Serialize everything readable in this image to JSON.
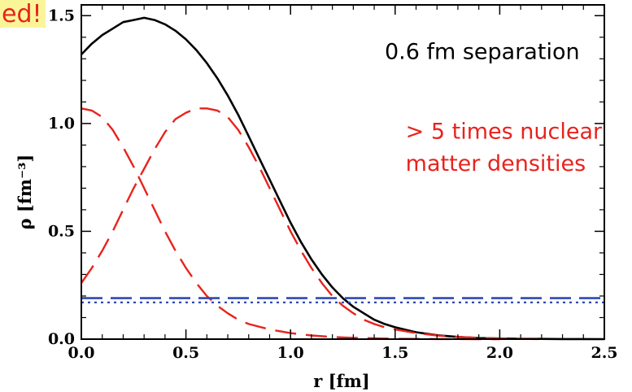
{
  "corner_label": "ed!",
  "chart_data": {
    "type": "line",
    "xlabel": "r [fm]",
    "ylabel": "ρ [fm⁻³]",
    "xlim": [
      0,
      2.5
    ],
    "ylim": [
      0,
      1.55
    ],
    "x_ticks": [
      0.0,
      0.5,
      1.0,
      1.5,
      2.0,
      2.5
    ],
    "x_tick_labels": [
      "0.0",
      "0.5",
      "1.0",
      "1.5",
      "2.0",
      "2.5"
    ],
    "y_ticks": [
      0.0,
      0.5,
      1.0,
      1.5
    ],
    "y_tick_labels": [
      "0.0",
      "0.5",
      "1.0",
      "1.5"
    ],
    "grid": false,
    "annotations": [
      {
        "text": "0.6 fm separation",
        "color": "#000000",
        "x": 1.45,
        "y": 1.3
      },
      {
        "text": "> 5 times nuclear",
        "color": "#e8231d",
        "x": 1.55,
        "y": 0.93
      },
      {
        "text": "matter densities",
        "color": "#e8231d",
        "x": 1.55,
        "y": 0.78
      }
    ],
    "series": [
      {
        "style": "solid",
        "color": "#000000",
        "x": [
          0,
          0.05,
          0.1,
          0.15,
          0.2,
          0.25,
          0.3,
          0.35,
          0.4,
          0.45,
          0.5,
          0.55,
          0.6,
          0.65,
          0.7,
          0.75,
          0.8,
          0.85,
          0.9,
          0.95,
          1.0,
          1.05,
          1.1,
          1.15,
          1.2,
          1.25,
          1.3,
          1.35,
          1.4,
          1.45,
          1.5,
          1.6,
          1.7,
          1.8,
          1.9,
          2.0,
          2.1,
          2.2,
          2.3,
          2.4,
          2.5
        ],
        "y": [
          1.32,
          1.37,
          1.41,
          1.44,
          1.47,
          1.48,
          1.49,
          1.48,
          1.46,
          1.43,
          1.39,
          1.34,
          1.28,
          1.21,
          1.13,
          1.04,
          0.94,
          0.84,
          0.74,
          0.64,
          0.54,
          0.45,
          0.37,
          0.3,
          0.24,
          0.19,
          0.15,
          0.12,
          0.09,
          0.07,
          0.055,
          0.032,
          0.018,
          0.01,
          0.005,
          0.003,
          0.0015,
          0.001,
          0.0005,
          0.0002,
          0.0001
        ]
      },
      {
        "style": "dashed",
        "color": "#e8231d",
        "x": [
          0,
          0.05,
          0.1,
          0.15,
          0.2,
          0.25,
          0.3,
          0.35,
          0.4,
          0.45,
          0.5,
          0.55,
          0.6,
          0.65,
          0.7,
          0.75,
          0.8,
          0.9,
          1.0,
          1.1,
          1.2,
          1.3,
          1.4,
          1.5,
          1.6,
          1.7,
          1.8,
          1.9,
          2.0
        ],
        "y": [
          1.07,
          1.06,
          1.03,
          0.97,
          0.89,
          0.8,
          0.7,
          0.6,
          0.5,
          0.41,
          0.33,
          0.26,
          0.2,
          0.155,
          0.12,
          0.09,
          0.07,
          0.045,
          0.028,
          0.017,
          0.01,
          0.006,
          0.004,
          0.002,
          0.001,
          0.0005,
          0.0003,
          0.0001,
          0.0
        ]
      },
      {
        "style": "dashed",
        "color": "#e8231d",
        "x": [
          0,
          0.05,
          0.1,
          0.15,
          0.2,
          0.25,
          0.3,
          0.35,
          0.4,
          0.45,
          0.5,
          0.55,
          0.6,
          0.65,
          0.7,
          0.75,
          0.8,
          0.85,
          0.9,
          0.95,
          1.0,
          1.05,
          1.1,
          1.15,
          1.2,
          1.25,
          1.3,
          1.35,
          1.4,
          1.45,
          1.5,
          1.6,
          1.7,
          1.8,
          1.9,
          2.0,
          2.1,
          2.2
        ],
        "y": [
          0.26,
          0.33,
          0.41,
          0.5,
          0.6,
          0.7,
          0.79,
          0.88,
          0.96,
          1.02,
          1.05,
          1.07,
          1.07,
          1.06,
          1.03,
          0.97,
          0.89,
          0.8,
          0.7,
          0.6,
          0.5,
          0.41,
          0.33,
          0.26,
          0.2,
          0.155,
          0.12,
          0.09,
          0.07,
          0.055,
          0.045,
          0.028,
          0.017,
          0.01,
          0.006,
          0.003,
          0.001,
          0.0
        ]
      },
      {
        "style": "long-dashed",
        "color": "#2f49b0",
        "x": [
          0,
          2.5
        ],
        "y": [
          0.19,
          0.19
        ]
      },
      {
        "style": "dotted",
        "color": "#2f49b0",
        "x": [
          0,
          2.5
        ],
        "y": [
          0.17,
          0.17
        ]
      }
    ]
  }
}
